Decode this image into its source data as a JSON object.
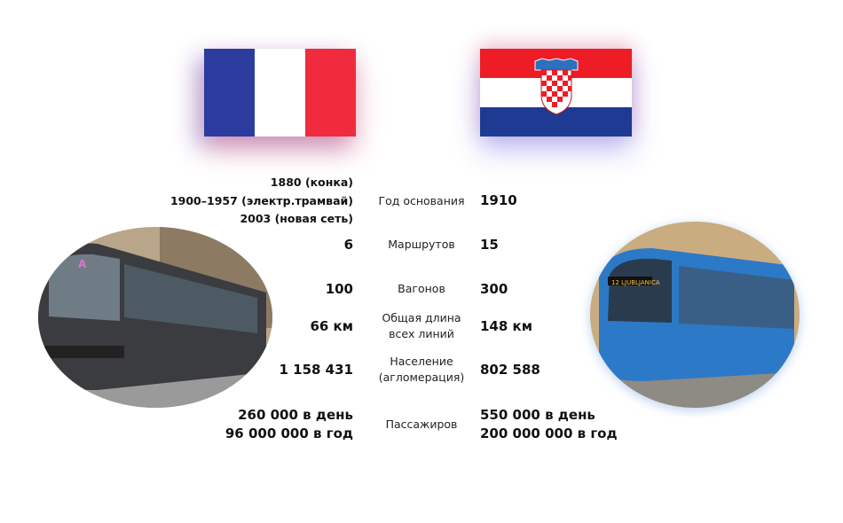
{
  "rows": [
    {
      "left": [
        "1880 (конка)",
        "1900–1957 (электр.трамвай)",
        "2003 (новая сеть)"
      ],
      "label": [
        "Год основания"
      ],
      "right": [
        "1910"
      ]
    },
    {
      "left": [
        "6"
      ],
      "label": [
        "Маршрутов"
      ],
      "right": [
        "15"
      ]
    },
    {
      "left": [
        "100"
      ],
      "label": [
        "Вагонов"
      ],
      "right": [
        "300"
      ]
    },
    {
      "left": [
        "66 км"
      ],
      "label": [
        "Общая длина",
        "всех линий"
      ],
      "right": [
        "148 км"
      ]
    },
    {
      "left": [
        "1 158 431"
      ],
      "label": [
        "Население",
        "(агломерация)"
      ],
      "right": [
        "802 588"
      ]
    },
    {
      "left": [
        "260 000 в день",
        "96 000 000 в год"
      ],
      "label": [
        "Пассажиров"
      ],
      "right": [
        "550 000 в день",
        "200 000 000 в год"
      ]
    }
  ]
}
